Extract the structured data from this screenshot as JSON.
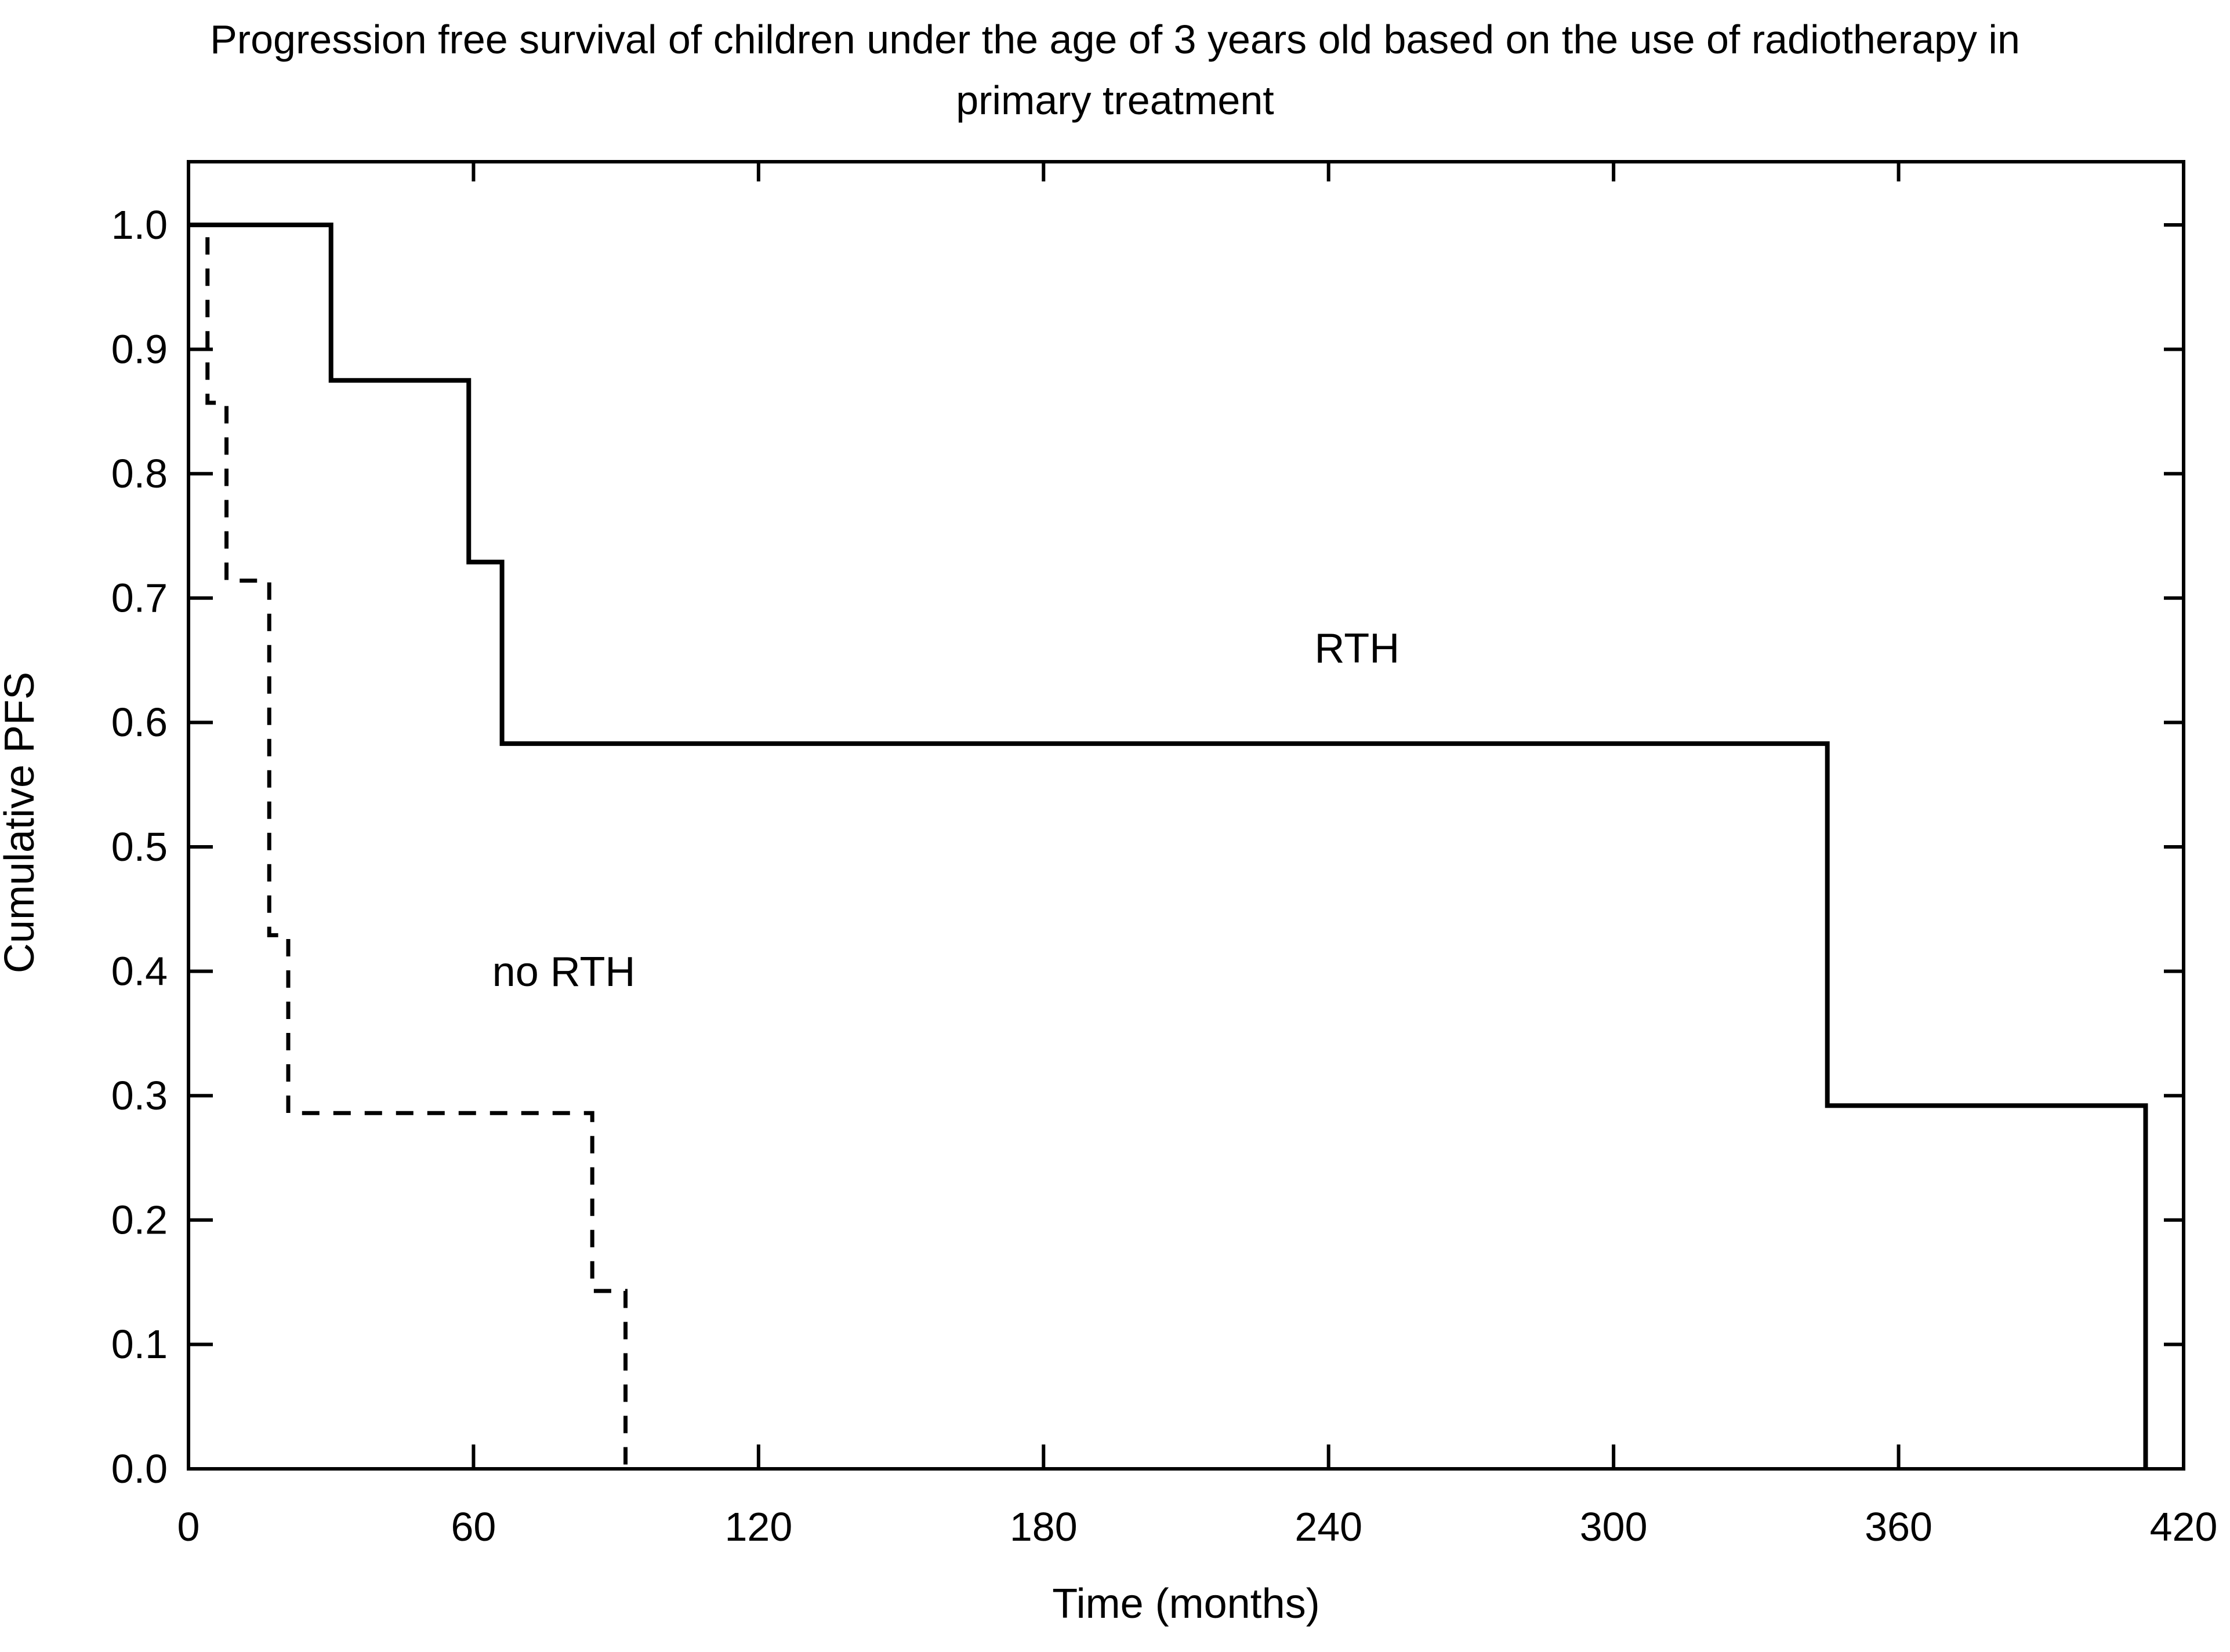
{
  "page": {
    "background_color": "#ffffff",
    "foreground_color": "#000000",
    "title_lines": [
      "Progression free survival of children under the age of 3 years old based on the use of radiotherapy in",
      "primary treatment"
    ]
  },
  "chart_data": {
    "type": "line",
    "subtype": "kaplan-meier-step",
    "title": "Progression free survival of children under the age of 3 years old based on the use of radiotherapy in primary treatment",
    "xlabel": "Time (months)",
    "ylabel": "Cumulative PFS",
    "xlim": [
      0,
      420
    ],
    "ylim": [
      0.0,
      1.0
    ],
    "xticks": [
      0,
      60,
      120,
      180,
      240,
      300,
      360,
      420
    ],
    "yticks": [
      0.0,
      0.1,
      0.2,
      0.3,
      0.4,
      0.5,
      0.6,
      0.7,
      0.8,
      0.9,
      1.0
    ],
    "grid": false,
    "frame": "box-with-inward-ticks",
    "legend_position": "inline-annotations",
    "line_color": "#000000",
    "series": [
      {
        "name": "RTH",
        "style": "solid",
        "steps": [
          [
            0,
            1.0
          ],
          [
            30,
            1.0
          ],
          [
            30,
            0.875
          ],
          [
            59,
            0.875
          ],
          [
            59,
            0.729
          ],
          [
            66,
            0.729
          ],
          [
            66,
            0.583
          ],
          [
            345,
            0.583
          ],
          [
            345,
            0.292
          ],
          [
            412,
            0.292
          ],
          [
            412,
            0.0
          ]
        ]
      },
      {
        "name": "no RTH",
        "style": "dashed",
        "steps": [
          [
            0,
            1.0
          ],
          [
            4,
            1.0
          ],
          [
            4,
            0.857
          ],
          [
            8,
            0.857
          ],
          [
            8,
            0.714
          ],
          [
            17,
            0.714
          ],
          [
            17,
            0.429
          ],
          [
            21,
            0.429
          ],
          [
            21,
            0.286
          ],
          [
            85,
            0.286
          ],
          [
            85,
            0.143
          ],
          [
            92,
            0.143
          ],
          [
            92,
            0.0
          ]
        ]
      }
    ],
    "annotations": [
      {
        "text": "RTH",
        "x_months": 246,
        "y_value": 0.66
      },
      {
        "text": "no RTH",
        "x_months": 79,
        "y_value": 0.4
      }
    ]
  }
}
